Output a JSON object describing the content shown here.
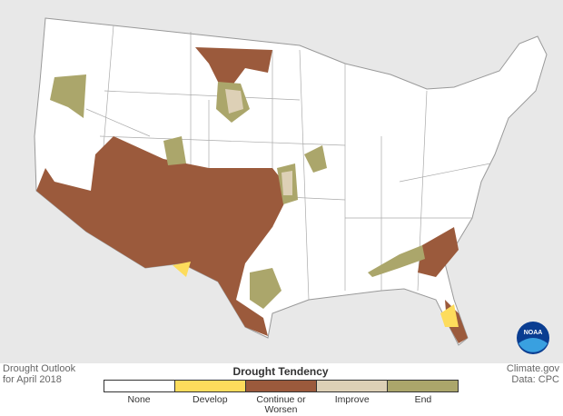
{
  "map": {
    "caption": [
      "Drought Outlook",
      "for April 2018"
    ],
    "credit": [
      "Climate.gov",
      "Data: CPC"
    ],
    "logo": "NOAA",
    "legend": {
      "title": "Drought Tendency",
      "items": [
        {
          "label": "None",
          "color": "#ffffff"
        },
        {
          "label": "Develop",
          "color": "#fddc5c"
        },
        {
          "label": "Continue or Worsen",
          "color": "#9b5a3c"
        },
        {
          "label": "Improve",
          "color": "#ddd0b6"
        },
        {
          "label": "End",
          "color": "#aba66b"
        }
      ]
    }
  }
}
